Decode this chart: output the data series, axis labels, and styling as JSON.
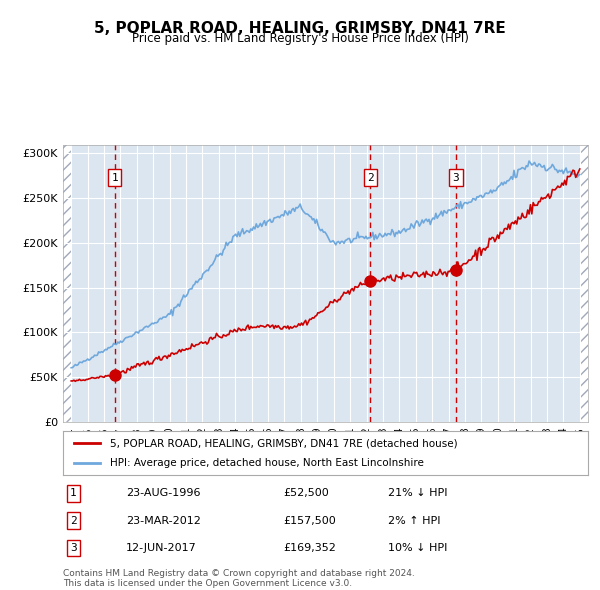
{
  "title": "5, POPLAR ROAD, HEALING, GRIMSBY, DN41 7RE",
  "subtitle": "Price paid vs. HM Land Registry's House Price Index (HPI)",
  "legend_line1": "5, POPLAR ROAD, HEALING, GRIMSBY, DN41 7RE (detached house)",
  "legend_line2": "HPI: Average price, detached house, North East Lincolnshire",
  "footer_line1": "Contains HM Land Registry data © Crown copyright and database right 2024.",
  "footer_line2": "This data is licensed under the Open Government Licence v3.0.",
  "sales": [
    {
      "num": 1,
      "date": "23-AUG-1996",
      "price": 52500,
      "pct": "21%",
      "dir": "↓",
      "year": 1996.65
    },
    {
      "num": 2,
      "date": "23-MAR-2012",
      "price": 157500,
      "pct": "2%",
      "dir": "↑",
      "year": 2012.23
    },
    {
      "num": 3,
      "date": "12-JUN-2017",
      "price": 169352,
      "pct": "10%",
      "dir": "↓",
      "year": 2017.45
    }
  ],
  "ylim": [
    0,
    310000
  ],
  "xlim": [
    1993.5,
    2025.5
  ],
  "yticks": [
    0,
    50000,
    100000,
    150000,
    200000,
    250000,
    300000
  ],
  "ytick_labels": [
    "£0",
    "£50K",
    "£100K",
    "£150K",
    "£200K",
    "£250K",
    "£300K"
  ],
  "hpi_color": "#6fa8dc",
  "property_color": "#cc0000",
  "sale_marker_color": "#cc0000",
  "vline_color": "#cc0000",
  "bg_color": "#dce6f1",
  "hatch_color": "#c0c8d8",
  "grid_color": "#ffffff"
}
